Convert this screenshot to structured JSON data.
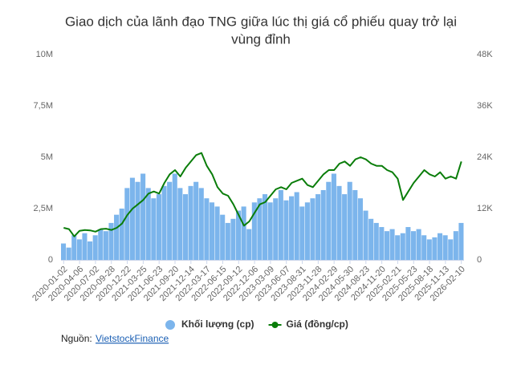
{
  "chart_data": {
    "type": "bar-line",
    "title": "Giao dịch của lãnh đạo TNG giữa lúc thị giá cổ phiếu quay trở lại",
    "title_line2": "vùng đỉnh",
    "categories": [
      "2020-01-02",
      null,
      null,
      "2020-04-06",
      null,
      null,
      "2020-07-02",
      null,
      null,
      "2020-09-28",
      null,
      null,
      "2020-12-22",
      null,
      null,
      "2021-03-25",
      null,
      null,
      "2021-06-23",
      null,
      null,
      "2021-09-20",
      null,
      null,
      "2021-12-14",
      null,
      null,
      "2022-03-17",
      null,
      null,
      "2022-06-15",
      null,
      null,
      "2022-09-12",
      null,
      null,
      "2022-12-06",
      null,
      null,
      "2023-03-09",
      null,
      null,
      "2023-06-07",
      null,
      null,
      "2023-08-31",
      null,
      null,
      "2023-11-28",
      null,
      null,
      "2024-02-29",
      null,
      null,
      "2024-05-30",
      null,
      null,
      "2024-08-23",
      null,
      null,
      "2024-11-20",
      null,
      null,
      "2025-02-21",
      null,
      null,
      "2025-05-23",
      null,
      null,
      "2025-08-18",
      null,
      null,
      "2025-11-13",
      null,
      null,
      "2026-02-10"
    ],
    "series": [
      {
        "name": "Khối lượng (cp)",
        "color": "#7cb5ec",
        "kind": "bar",
        "values": [
          800000,
          600000,
          1200000,
          1000000,
          1300000,
          900000,
          1200000,
          1500000,
          1400000,
          1800000,
          2200000,
          2500000,
          3500000,
          4000000,
          3800000,
          4200000,
          3500000,
          3000000,
          3200000,
          3600000,
          3800000,
          4200000,
          3500000,
          3200000,
          3600000,
          3800000,
          3500000,
          3000000,
          2800000,
          2600000,
          2200000,
          1800000,
          2000000,
          2400000,
          2600000,
          1500000,
          2800000,
          3000000,
          3200000,
          2800000,
          3000000,
          3400000,
          2900000,
          3100000,
          3300000,
          2600000,
          2800000,
          3000000,
          3200000,
          3400000,
          3800000,
          4200000,
          3600000,
          3200000,
          3800000,
          3400000,
          3000000,
          2400000,
          2000000,
          1800000,
          1600000,
          1400000,
          1500000,
          1200000,
          1300000,
          1600000,
          1400000,
          1500000,
          1200000,
          1000000,
          1100000,
          1300000,
          1200000,
          1000000,
          1400000,
          1800000
        ]
      },
      {
        "name": "Giá (đồng/cp)",
        "color": "#0a7d0a",
        "kind": "line",
        "axis": "y2",
        "values": [
          7500,
          7200,
          5500,
          6800,
          7000,
          6900,
          6600,
          7200,
          7300,
          7000,
          7500,
          8500,
          10500,
          12000,
          13000,
          14000,
          15500,
          16000,
          15500,
          18000,
          20000,
          21000,
          19500,
          21500,
          23000,
          24500,
          25000,
          22000,
          20000,
          17000,
          15500,
          15000,
          13000,
          10500,
          8000,
          9000,
          11000,
          13000,
          13500,
          15000,
          16500,
          17000,
          16500,
          18000,
          18500,
          19000,
          17500,
          17000,
          18500,
          20000,
          21000,
          21000,
          22500,
          23000,
          22000,
          23500,
          24000,
          23500,
          22500,
          22000,
          22000,
          21000,
          20500,
          19000,
          14000,
          16000,
          18000,
          19500,
          21000,
          20000,
          19500,
          20500,
          19000,
          19500,
          19000,
          23000
        ]
      }
    ],
    "ylim": [
      0,
      10000000
    ],
    "yticks": [
      0,
      {
        "value": 2500000,
        "label": "2,5M"
      },
      {
        "value": 5000000,
        "label": "5M"
      },
      {
        "value": 7500000,
        "label": "7,5M"
      },
      {
        "value": 10000000,
        "label": "10M"
      }
    ],
    "y2lim": [
      0,
      48000
    ],
    "y2ticks": [
      0,
      {
        "value": 12000,
        "label": "12K"
      },
      {
        "value": 24000,
        "label": "24K"
      },
      {
        "value": 36000,
        "label": "36K"
      },
      {
        "value": 48000,
        "label": "48K"
      }
    ],
    "grid": false,
    "source_label": "Nguồn:",
    "source_link": "VietstockFinance"
  }
}
